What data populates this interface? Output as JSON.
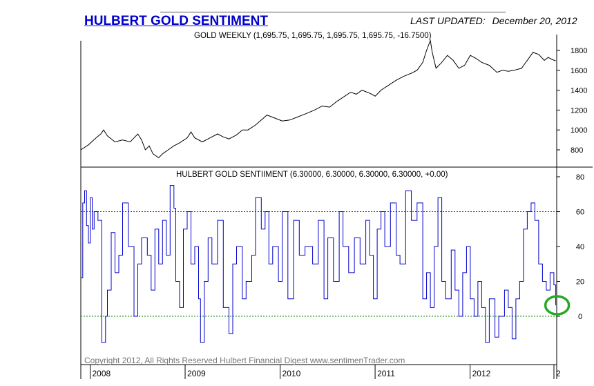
{
  "header": {
    "title": "HULBERT GOLD SENTIMENT",
    "last_updated_label": "LAST UPDATED:",
    "last_updated_date": "December 20, 2012"
  },
  "copyright": "Copyright 2012, All Rights Reserved  Hulbert Financial Digest  www.sentimenTrader.com",
  "colors": {
    "price_line": "#000000",
    "sentiment_line": "#0000cc",
    "upper_ref": "#cc0000",
    "lower_ref": "#008000",
    "marker_circle": "#22aa22"
  },
  "chart_data": [
    {
      "type": "line",
      "title": "GOLD WEEKLY (1,695.75, 1,695.75, 1,695.75, 1,695.75, -16.7500)",
      "xlabel": "",
      "ylabel": "",
      "x_tick_labels": [
        "2008",
        "2009",
        "2010",
        "2011",
        "2012",
        "2"
      ],
      "yticks": [
        800,
        1000,
        1200,
        1400,
        1600,
        1800
      ],
      "ylim": [
        650,
        1920
      ],
      "grid": false,
      "series": [
        {
          "x": [
            2007.96,
            2008.04,
            2008.12,
            2008.17,
            2008.2,
            2008.24,
            2008.32,
            2008.4,
            2008.48,
            2008.56,
            2008.6,
            2008.64,
            2008.68,
            2008.72,
            2008.78,
            2008.82,
            2008.88,
            2008.94,
            2009.0,
            2009.08,
            2009.12,
            2009.16,
            2009.24,
            2009.32,
            2009.4,
            2009.46,
            2009.52,
            2009.6,
            2009.66,
            2009.72,
            2009.8,
            2009.86,
            2009.92,
            2010.0,
            2010.08,
            2010.16,
            2010.24,
            2010.32,
            2010.42,
            2010.5,
            2010.58,
            2010.66,
            2010.74,
            2010.8,
            2010.86,
            2010.92,
            2011.0,
            2011.06,
            2011.12,
            2011.2,
            2011.28,
            2011.36,
            2011.44,
            2011.5,
            2011.56,
            2011.6,
            2011.64,
            2011.66,
            2011.7,
            2011.76,
            2011.82,
            2011.88,
            2011.94,
            2012.0,
            2012.06,
            2012.12,
            2012.18,
            2012.26,
            2012.34,
            2012.4,
            2012.46,
            2012.52,
            2012.6,
            2012.66,
            2012.72,
            2012.78,
            2012.84,
            2012.88,
            2012.92,
            2012.96
          ],
          "y": [
            800,
            850,
            920,
            960,
            1000,
            940,
            880,
            900,
            880,
            960,
            900,
            800,
            840,
            760,
            720,
            760,
            800,
            840,
            870,
            920,
            980,
            920,
            880,
            920,
            960,
            930,
            910,
            950,
            1000,
            1000,
            1050,
            1100,
            1150,
            1120,
            1090,
            1100,
            1130,
            1160,
            1200,
            1240,
            1230,
            1290,
            1340,
            1380,
            1360,
            1400,
            1370,
            1340,
            1400,
            1450,
            1500,
            1540,
            1570,
            1600,
            1680,
            1800,
            1900,
            1780,
            1620,
            1680,
            1750,
            1700,
            1620,
            1650,
            1750,
            1720,
            1680,
            1650,
            1580,
            1600,
            1590,
            1600,
            1620,
            1700,
            1780,
            1760,
            1700,
            1730,
            1710,
            1695
          ]
        }
      ]
    },
    {
      "type": "line",
      "title": "HULBERT GOLD SENTIIMENT (6.30000, 6.30000, 6.30000, 6.30000, +0.00)",
      "xlabel": "",
      "ylabel": "",
      "x_tick_labels": [
        "2008",
        "2009",
        "2010",
        "2011",
        "2012",
        "2"
      ],
      "yticks": [
        0,
        20,
        40,
        60,
        80
      ],
      "ylim": [
        -25,
        83
      ],
      "grid": false,
      "reference_lines": [
        60,
        0
      ],
      "series": [
        {
          "x": [
            2007.96,
            2007.98,
            2008.0,
            2008.02,
            2008.04,
            2008.06,
            2008.08,
            2008.1,
            2008.14,
            2008.18,
            2008.22,
            2008.24,
            2008.28,
            2008.32,
            2008.36,
            2008.4,
            2008.46,
            2008.52,
            2008.56,
            2008.6,
            2008.66,
            2008.7,
            2008.74,
            2008.78,
            2008.82,
            2008.86,
            2008.9,
            2008.94,
            2008.96,
            2009.0,
            2009.04,
            2009.08,
            2009.12,
            2009.16,
            2009.2,
            2009.22,
            2009.26,
            2009.3,
            2009.34,
            2009.4,
            2009.46,
            2009.52,
            2009.56,
            2009.6,
            2009.66,
            2009.7,
            2009.76,
            2009.8,
            2009.86,
            2009.9,
            2009.94,
            2009.98,
            2010.04,
            2010.08,
            2010.14,
            2010.2,
            2010.26,
            2010.32,
            2010.4,
            2010.46,
            2010.52,
            2010.56,
            2010.62,
            2010.68,
            2010.72,
            2010.78,
            2010.84,
            2010.9,
            2010.96,
            2011.0,
            2011.04,
            2011.08,
            2011.12,
            2011.16,
            2011.22,
            2011.28,
            2011.32,
            2011.38,
            2011.44,
            2011.5,
            2011.56,
            2011.6,
            2011.64,
            2011.68,
            2011.72,
            2011.76,
            2011.8,
            2011.86,
            2011.9,
            2011.94,
            2011.98,
            2012.02,
            2012.06,
            2012.1,
            2012.14,
            2012.18,
            2012.22,
            2012.26,
            2012.32,
            2012.36,
            2012.42,
            2012.46,
            2012.5,
            2012.54,
            2012.58,
            2012.62,
            2012.66,
            2012.7,
            2012.74,
            2012.78,
            2012.82,
            2012.86,
            2012.9,
            2012.94,
            2012.96
          ],
          "y": [
            22,
            65,
            72,
            52,
            42,
            68,
            50,
            60,
            55,
            -15,
            0,
            15,
            48,
            25,
            35,
            65,
            40,
            0,
            30,
            45,
            35,
            15,
            50,
            30,
            55,
            35,
            75,
            62,
            20,
            5,
            50,
            60,
            30,
            40,
            10,
            -15,
            20,
            45,
            30,
            55,
            5,
            -10,
            30,
            40,
            10,
            20,
            35,
            68,
            50,
            60,
            30,
            40,
            20,
            60,
            10,
            55,
            35,
            40,
            30,
            55,
            10,
            45,
            20,
            60,
            40,
            25,
            45,
            30,
            55,
            35,
            10,
            50,
            60,
            40,
            65,
            35,
            30,
            72,
            55,
            65,
            10,
            25,
            5,
            40,
            68,
            20,
            10,
            38,
            15,
            0,
            25,
            40,
            10,
            0,
            20,
            5,
            -15,
            10,
            -12,
            0,
            15,
            5,
            -13,
            10,
            20,
            50,
            60,
            65,
            55,
            30,
            20,
            15,
            25,
            18,
            6.3
          ]
        }
      ]
    }
  ]
}
